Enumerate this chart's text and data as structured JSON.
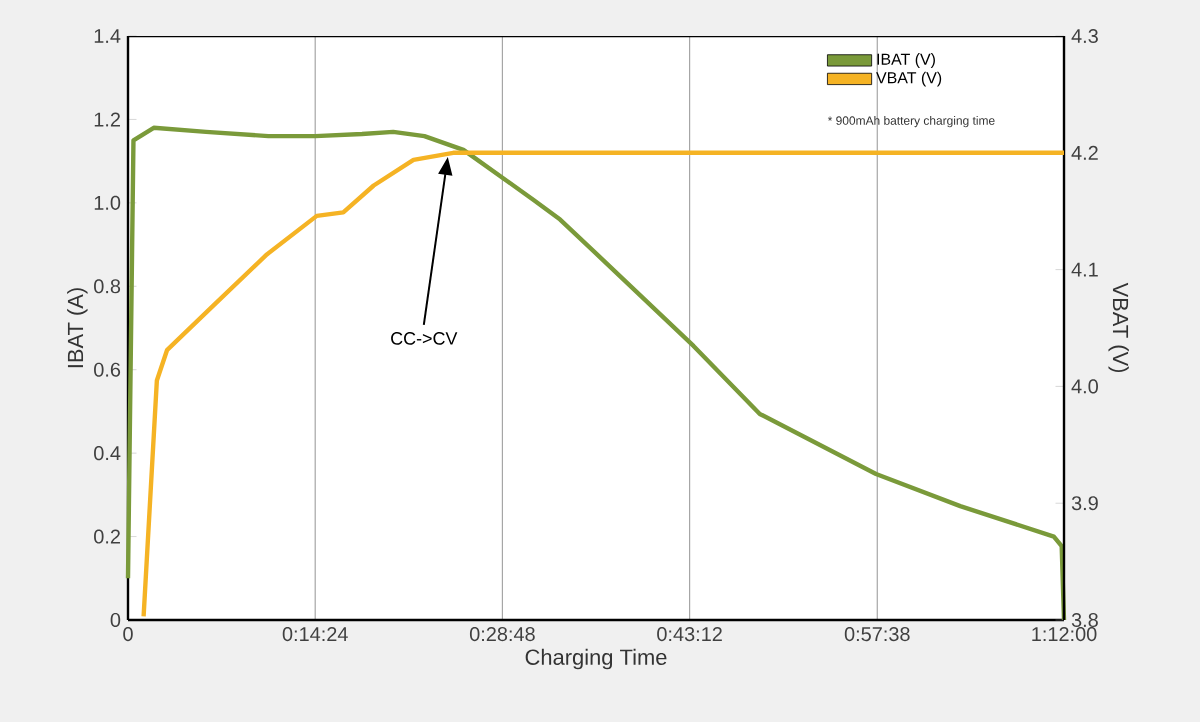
{
  "chart_data": {
    "type": "line",
    "xlabel": "Charging Time",
    "ylabel": "IBAT (A)",
    "y2label": "VBAT (V)",
    "annotations": [
      {
        "text": "CC->CV",
        "x": 0.41,
        "y": 1.11
      },
      "* 900mAh battery charging time"
    ],
    "series": [
      {
        "name": "IBAT (V)",
        "color": "#7a9a3a",
        "x": [
          0,
          0.007,
          0.033,
          0.1,
          0.18,
          0.24,
          0.3,
          0.34,
          0.38,
          0.43,
          0.52,
          0.554,
          0.605,
          0.725,
          0.81,
          0.959,
          1.067,
          1.187,
          1.197,
          1.2
        ],
        "values": [
          0.1,
          1.15,
          1.18,
          1.17,
          1.16,
          1.16,
          1.165,
          1.17,
          1.16,
          1.127,
          1.007,
          0.96,
          0.87,
          0.657,
          0.494,
          0.35,
          0.273,
          0.2,
          0.177,
          0
        ]
      },
      {
        "name": "VBAT (V)",
        "color": "#f5b324",
        "axis": "y2",
        "x": [
          0.02,
          0.037,
          0.05,
          0.109,
          0.178,
          0.242,
          0.276,
          0.315,
          0.366,
          0.417,
          0.5,
          0.7,
          0.9,
          0.96,
          1.05,
          1.2
        ],
        "values": [
          3.803,
          4.005,
          4.031,
          4.069,
          4.113,
          4.146,
          4.149,
          4.172,
          4.194,
          4.2,
          4.2,
          4.2,
          4.2,
          4.2,
          4.2,
          4.2
        ]
      }
    ],
    "xlim": [
      0,
      1.2
    ],
    "xticks": [
      {
        "value": 0,
        "label": "0"
      },
      {
        "value": 0.24,
        "label": "0:14:24"
      },
      {
        "value": 0.48,
        "label": "0:28:48"
      },
      {
        "value": 0.72,
        "label": "0:43:12"
      },
      {
        "value": 0.9606,
        "label": "0:57:38"
      },
      {
        "value": 1.2,
        "label": "1:12:00"
      }
    ],
    "ylim": [
      0,
      1.4
    ],
    "yticks": [
      {
        "value": 0,
        "label": "0"
      },
      {
        "value": 0.2,
        "label": "0.2"
      },
      {
        "value": 0.4,
        "label": "0.4"
      },
      {
        "value": 0.6,
        "label": "0.6"
      },
      {
        "value": 0.8,
        "label": "0.8"
      },
      {
        "value": 1.0,
        "label": "1.0"
      },
      {
        "value": 1.2,
        "label": "1.2"
      },
      {
        "value": 1.4,
        "label": "1.4"
      }
    ],
    "y2lim": [
      3.8,
      4.3
    ],
    "y2ticks": [
      {
        "value": 3.8,
        "label": "3.8"
      },
      {
        "value": 3.9,
        "label": "3.9"
      },
      {
        "value": 4.0,
        "label": "4.0"
      },
      {
        "value": 4.1,
        "label": "4.1"
      },
      {
        "value": 4.2,
        "label": "4.2"
      },
      {
        "value": 4.3,
        "label": "4.3"
      }
    ],
    "grid": "x",
    "legend": "top right",
    "marker": "none",
    "line_style": "solid"
  }
}
